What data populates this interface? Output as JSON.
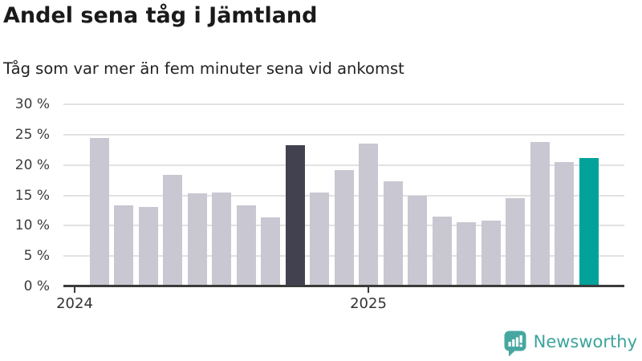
{
  "title": "Andel sena tåg i Jämtland",
  "subtitle": "Tåg som var mer än fem minuter sena vid ankomst",
  "branding": {
    "logo_text": "Newsworthy",
    "logo_color": "#3ba49c",
    "icon_name": "newsworthy-speech-bubble-chart-icon",
    "icon_color": "#46a7a0"
  },
  "chart_data": {
    "type": "bar",
    "title": "Andel sena tåg i Jämtland",
    "subtitle": "Tåg som var mer än fem minuter sena vid ankomst",
    "unit": "%",
    "categories": [
      "2024-02",
      "2024-03",
      "2024-04",
      "2024-05",
      "2024-06",
      "2024-07",
      "2024-08",
      "2024-09",
      "2024-10",
      "2024-11",
      "2024-12",
      "2025-01",
      "2025-02",
      "2025-03",
      "2025-04",
      "2025-05",
      "2025-06",
      "2025-07",
      "2025-08",
      "2025-09",
      "2025-10"
    ],
    "values": [
      24.4,
      13.4,
      13.1,
      18.4,
      15.3,
      15.5,
      13.4,
      11.4,
      23.2,
      15.5,
      19.2,
      23.5,
      17.3,
      15.0,
      11.5,
      10.6,
      10.9,
      14.6,
      23.8,
      20.5,
      21.2
    ],
    "ylim": [
      0,
      30
    ],
    "y_tick_step": 5,
    "y_tick_labels": [
      "0 %",
      "5 %",
      "10 %",
      "15 %",
      "20 %",
      "25 %",
      "30 %"
    ],
    "x_ticks": [
      {
        "label": "2024",
        "month_offset": -1
      },
      {
        "label": "2025",
        "month_offset": 11
      }
    ],
    "grid": true,
    "legend": false,
    "colors": {
      "default": "#c9c7d2",
      "highlight": "#42414f",
      "latest": "#00a29a"
    },
    "highlight_index": 8,
    "latest_index": 20
  }
}
